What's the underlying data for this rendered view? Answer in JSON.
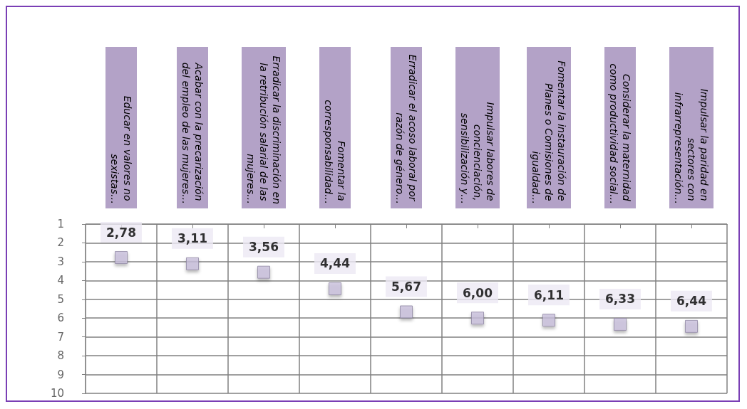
{
  "chart_data": {
    "type": "scatter",
    "categories": [
      "Educar en valores no sexistas…",
      "Acabar con la precarización del empleo de las mujeres…",
      "Erradicar la discriminación en la retribución salarial de las mujeres…",
      "Fomentar la corresponsabilidad…",
      "Erradicar el acoso laboral por razón de género…",
      "Impulsar labores de concienciación, sensibilización y…",
      "Fomentar la instauración de Planes o Comisiones de igualdad…",
      "Considerar la maternidad como productividad social…",
      "Impulsar la paridad en sectores con infrarrepresentación…"
    ],
    "series": [
      {
        "color": "#c9bfdc",
        "values": [
          2.78,
          3.11,
          3.56,
          4.44,
          5.67,
          6.0,
          6.11,
          6.33,
          6.44
        ],
        "value_labels": [
          "2,78",
          "3,11",
          "3,56",
          "4,44",
          "5,67",
          "6,00",
          "6,11",
          "6,33",
          "6,44"
        ]
      }
    ],
    "ylim": [
      10,
      1
    ],
    "yticks": [
      1,
      2,
      3,
      4,
      5,
      6,
      7,
      8,
      9,
      10
    ],
    "grid": true,
    "marker": "square"
  }
}
